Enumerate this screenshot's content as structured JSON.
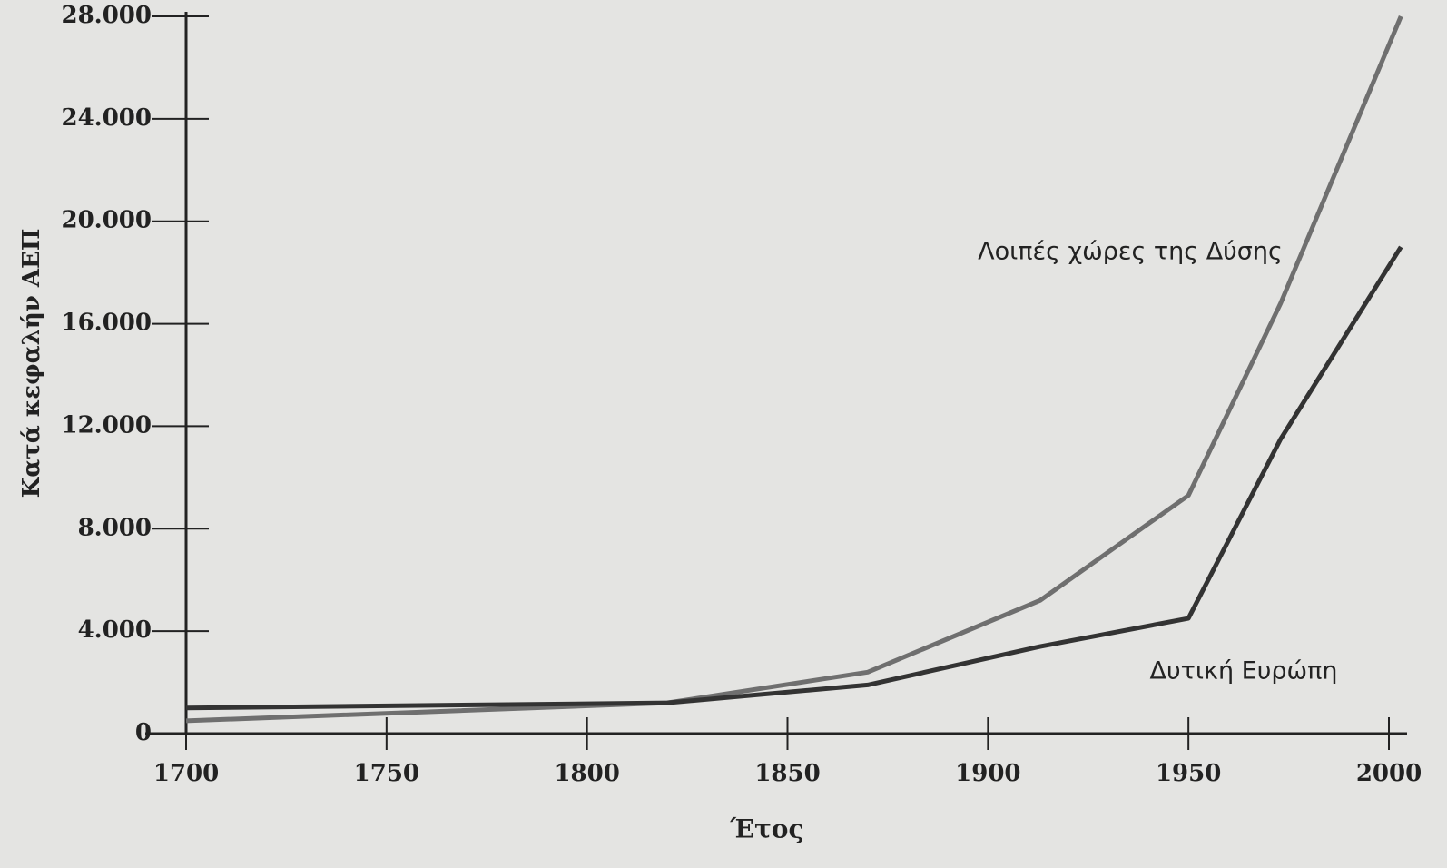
{
  "chart_data": {
    "type": "line",
    "xlabel": "Έτος",
    "ylabel": "Κατά κεφαλήν ΑΕΠ",
    "xlim": [
      1700,
      2000
    ],
    "xticks": [
      1700,
      1750,
      1800,
      1850,
      1900,
      1950,
      2000
    ],
    "ylim": [
      0,
      28000
    ],
    "yticks": [
      0,
      {
        "value": 4000,
        "label": "4.000"
      },
      {
        "value": 8000,
        "label": "8.000"
      },
      {
        "value": 12000,
        "label": "12.000"
      },
      {
        "value": 16000,
        "label": "16.000"
      },
      {
        "value": 20000,
        "label": "20.000"
      },
      {
        "value": 24000,
        "label": "24.000"
      },
      {
        "value": 28000,
        "label": "28.000"
      }
    ],
    "series": [
      {
        "name": "Λοιπές χώρες της Δύσης",
        "color": "#6f6f6f",
        "x": [
          1700,
          1820,
          1870,
          1913,
          1950,
          1973,
          2003
        ],
        "values": [
          500,
          1200,
          2400,
          5200,
          9300,
          16800,
          28000
        ]
      },
      {
        "name": "Δυτική Ευρώπη",
        "color": "#333333",
        "x": [
          1700,
          1820,
          1870,
          1913,
          1950,
          1973,
          2003
        ],
        "values": [
          1000,
          1200,
          1900,
          3400,
          4500,
          11500,
          19000
        ]
      }
    ]
  }
}
